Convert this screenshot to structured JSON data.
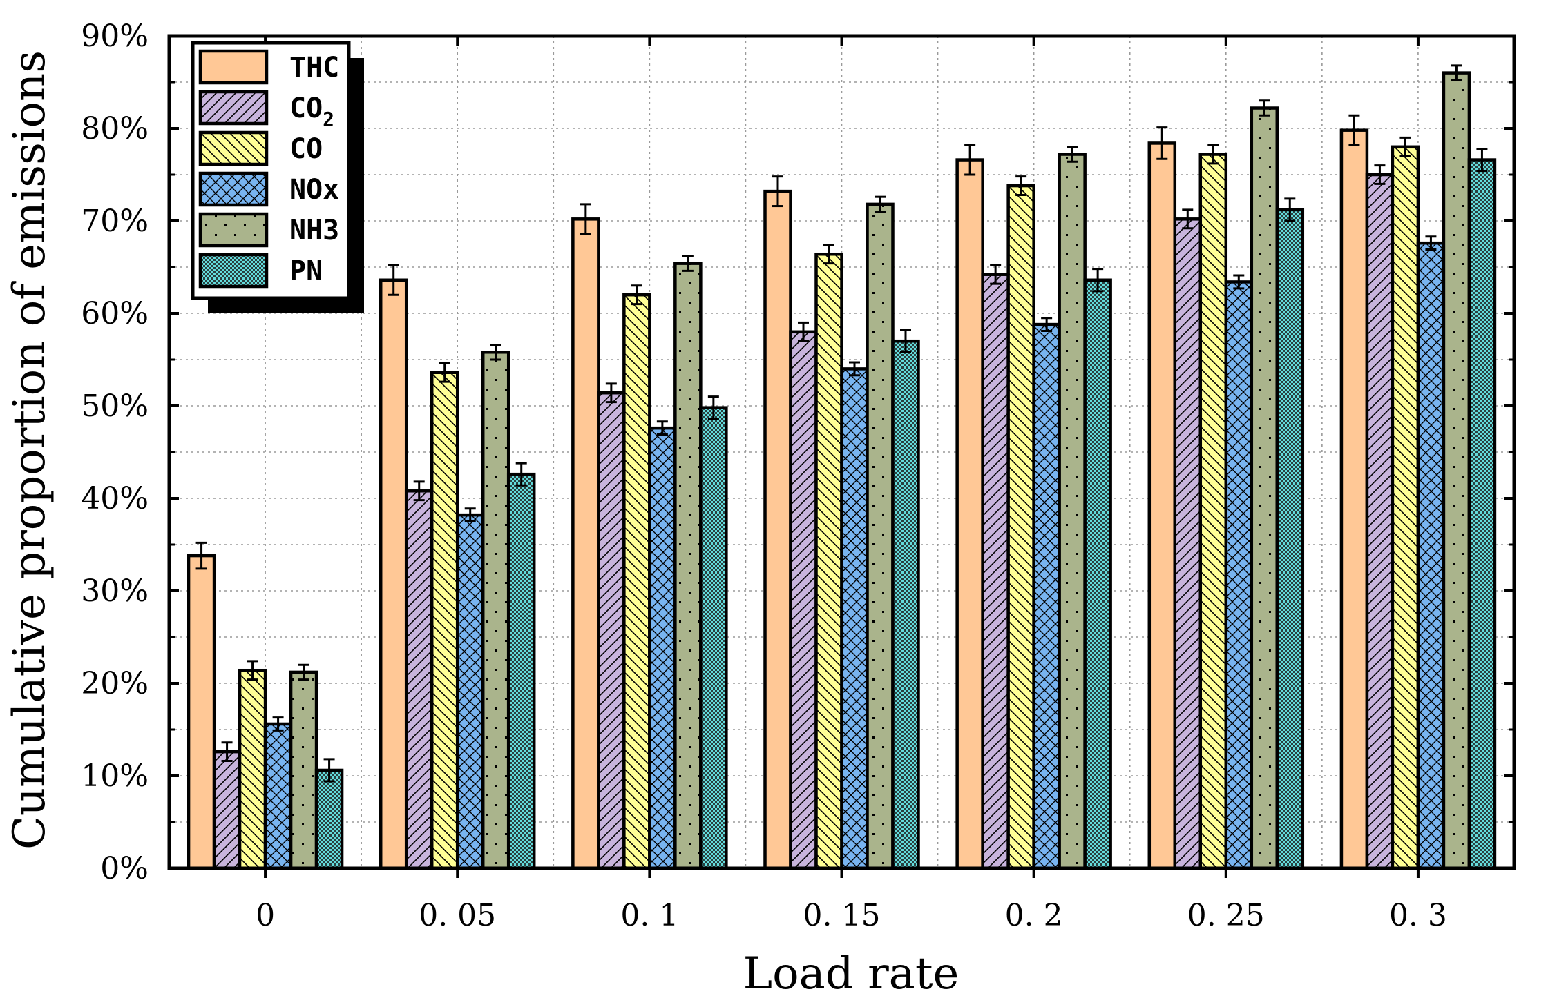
{
  "chart_data": {
    "type": "bar",
    "title": "",
    "xlabel": "Load rate",
    "ylabel": "Cumulative proportion of emissions",
    "categories": [
      "0",
      "0. 05",
      "0. 1",
      "0. 15",
      "0. 2",
      "0. 25",
      "0. 3"
    ],
    "ylim": [
      0,
      90
    ],
    "yticks": [
      "0%",
      "10%",
      "20%",
      "30%",
      "40%",
      "50%",
      "60%",
      "70%",
      "80%",
      "90%"
    ],
    "grid": true,
    "legend_position": "top-left",
    "series": [
      {
        "name": "THC",
        "label_main": "THC",
        "label_sub": "",
        "color": "#FFC896",
        "pattern": "solid",
        "values": [
          33.8,
          63.6,
          70.2,
          73.2,
          76.6,
          78.4,
          79.8
        ],
        "errors": [
          1.4,
          1.6,
          1.6,
          1.6,
          1.6,
          1.7,
          1.6
        ]
      },
      {
        "name": "CO2",
        "label_main": "CO",
        "label_sub": "2",
        "color": "#C8B4DC",
        "pattern": "diagonal",
        "values": [
          12.6,
          40.8,
          51.4,
          58.0,
          64.2,
          70.2,
          75.0
        ],
        "errors": [
          1.0,
          1.0,
          1.0,
          1.0,
          1.0,
          1.0,
          1.0
        ]
      },
      {
        "name": "CO",
        "label_main": "CO",
        "label_sub": "",
        "color": "#FFFF96",
        "pattern": "backdiagonal",
        "values": [
          21.4,
          53.6,
          62.0,
          66.4,
          73.8,
          77.2,
          78.0
        ],
        "errors": [
          1.0,
          1.0,
          1.0,
          1.0,
          1.0,
          1.0,
          1.0
        ]
      },
      {
        "name": "NOx",
        "label_main": "NOx",
        "label_sub": "",
        "color": "#78B4F0",
        "pattern": "crosshatch",
        "values": [
          15.6,
          38.2,
          47.6,
          54.0,
          58.8,
          63.4,
          67.6
        ],
        "errors": [
          0.7,
          0.7,
          0.7,
          0.7,
          0.7,
          0.7,
          0.7
        ]
      },
      {
        "name": "NH3",
        "label_main": "NH3",
        "label_sub": "",
        "color": "#AAB48C",
        "pattern": "dots",
        "values": [
          21.2,
          55.8,
          65.4,
          71.8,
          77.2,
          82.2,
          86.0
        ],
        "errors": [
          0.8,
          0.8,
          0.8,
          0.8,
          0.8,
          0.8,
          0.8
        ]
      },
      {
        "name": "PN",
        "label_main": "PN",
        "label_sub": "",
        "color": "#64DCDC",
        "pattern": "checker",
        "values": [
          10.6,
          42.6,
          49.8,
          57.0,
          63.6,
          71.2,
          76.6
        ],
        "errors": [
          1.2,
          1.2,
          1.2,
          1.2,
          1.2,
          1.2,
          1.2
        ]
      }
    ]
  }
}
